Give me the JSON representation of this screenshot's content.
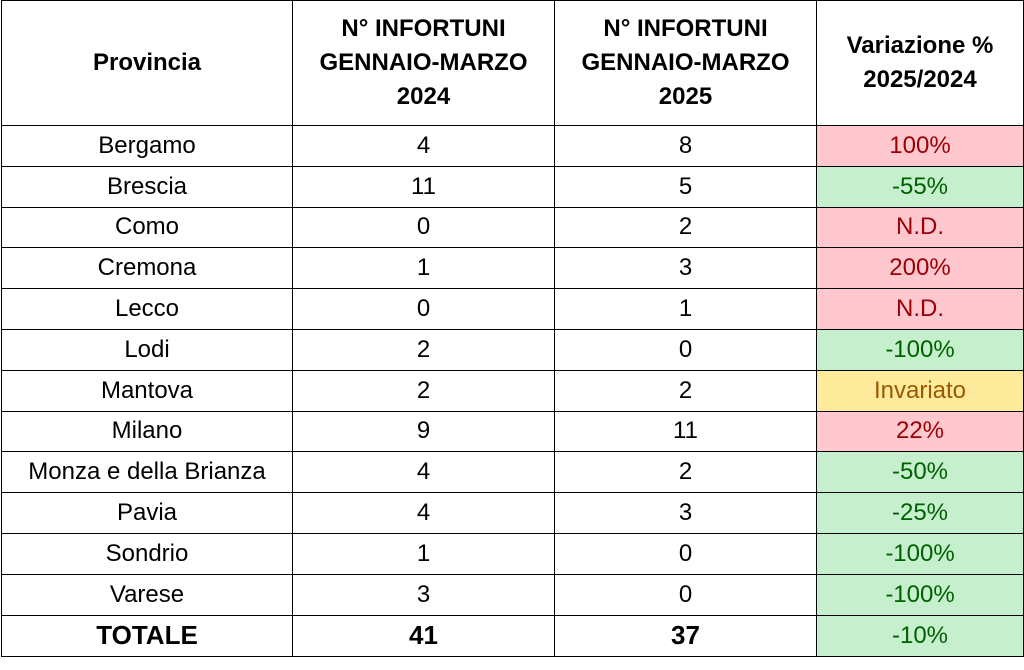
{
  "headers": {
    "provincia": "Provincia",
    "col2024": [
      "N° INFORTUNI",
      "GENNAIO-MARZO",
      "2024"
    ],
    "col2025": [
      "N° INFORTUNI",
      "GENNAIO-MARZO",
      "2025"
    ],
    "variazione": [
      "Variazione %",
      "2025/2024"
    ]
  },
  "rows": [
    {
      "provincia": "Bergamo",
      "v2024": "4",
      "v2025": "8",
      "variazione": "100%",
      "trend": "up"
    },
    {
      "provincia": "Brescia",
      "v2024": "11",
      "v2025": "5",
      "variazione": "-55%",
      "trend": "down"
    },
    {
      "provincia": "Como",
      "v2024": "0",
      "v2025": "2",
      "variazione": "N.D.",
      "trend": "up"
    },
    {
      "provincia": "Cremona",
      "v2024": "1",
      "v2025": "3",
      "variazione": "200%",
      "trend": "up"
    },
    {
      "provincia": "Lecco",
      "v2024": "0",
      "v2025": "1",
      "variazione": "N.D.",
      "trend": "up"
    },
    {
      "provincia": "Lodi",
      "v2024": "2",
      "v2025": "0",
      "variazione": "-100%",
      "trend": "down"
    },
    {
      "provincia": "Mantova",
      "v2024": "2",
      "v2025": "2",
      "variazione": "Invariato",
      "trend": "same"
    },
    {
      "provincia": "Milano",
      "v2024": "9",
      "v2025": "11",
      "variazione": "22%",
      "trend": "up"
    },
    {
      "provincia": "Monza e della Brianza",
      "v2024": "4",
      "v2025": "2",
      "variazione": "-50%",
      "trend": "down"
    },
    {
      "provincia": "Pavia",
      "v2024": "4",
      "v2025": "3",
      "variazione": "-25%",
      "trend": "down"
    },
    {
      "provincia": "Sondrio",
      "v2024": "1",
      "v2025": "0",
      "variazione": "-100%",
      "trend": "down"
    },
    {
      "provincia": "Varese",
      "v2024": "3",
      "v2025": "0",
      "variazione": "-100%",
      "trend": "down"
    }
  ],
  "totale": {
    "label": "TOTALE",
    "v2024": "41",
    "v2025": "37",
    "variazione": "-10%",
    "trend": "down"
  },
  "colors": {
    "up_bg": "#ffc7ce",
    "up_text": "#9c0006",
    "down_bg": "#c6efce",
    "down_text": "#006100",
    "same_bg": "#ffeb9c",
    "same_text": "#9c5700"
  }
}
